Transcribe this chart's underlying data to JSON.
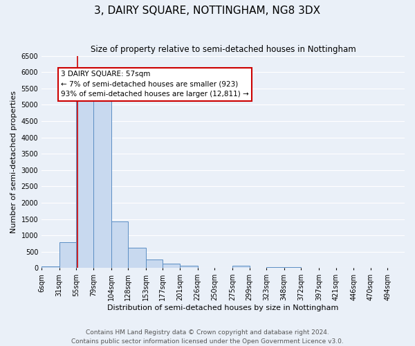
{
  "title": "3, DAIRY SQUARE, NOTTINGHAM, NG8 3DX",
  "subtitle": "Size of property relative to semi-detached houses in Nottingham",
  "xlabel": "Distribution of semi-detached houses by size in Nottingham",
  "ylabel": "Number of semi-detached properties",
  "bin_labels": [
    "6sqm",
    "31sqm",
    "55sqm",
    "79sqm",
    "104sqm",
    "128sqm",
    "153sqm",
    "177sqm",
    "201sqm",
    "226sqm",
    "250sqm",
    "275sqm",
    "299sqm",
    "323sqm",
    "348sqm",
    "372sqm",
    "397sqm",
    "421sqm",
    "446sqm",
    "470sqm",
    "494sqm"
  ],
  "bin_edges": [
    6,
    31,
    55,
    79,
    104,
    128,
    153,
    177,
    201,
    226,
    250,
    275,
    299,
    323,
    348,
    372,
    397,
    421,
    446,
    470,
    494
  ],
  "bar_heights": [
    50,
    790,
    5350,
    5250,
    1430,
    630,
    270,
    130,
    70,
    0,
    0,
    60,
    0,
    30,
    20,
    10,
    10,
    0,
    0,
    5
  ],
  "bar_color": "#c8d9ef",
  "bar_edge_color": "#5b8ec4",
  "red_line_x": 57,
  "annotation_title": "3 DAIRY SQUARE: 57sqm",
  "annotation_line1": "← 7% of semi-detached houses are smaller (923)",
  "annotation_line2": "93% of semi-detached houses are larger (12,811) →",
  "annotation_box_color": "#ffffff",
  "annotation_box_edge": "#cc0000",
  "ylim": [
    0,
    6500
  ],
  "yticks": [
    0,
    500,
    1000,
    1500,
    2000,
    2500,
    3000,
    3500,
    4000,
    4500,
    5000,
    5500,
    6000,
    6500
  ],
  "footer1": "Contains HM Land Registry data © Crown copyright and database right 2024.",
  "footer2": "Contains public sector information licensed under the Open Government Licence v3.0.",
  "background_color": "#eaf0f8",
  "grid_color": "#ffffff",
  "title_fontsize": 11,
  "subtitle_fontsize": 8.5,
  "axis_label_fontsize": 8,
  "tick_fontsize": 7,
  "footer_fontsize": 6.5
}
